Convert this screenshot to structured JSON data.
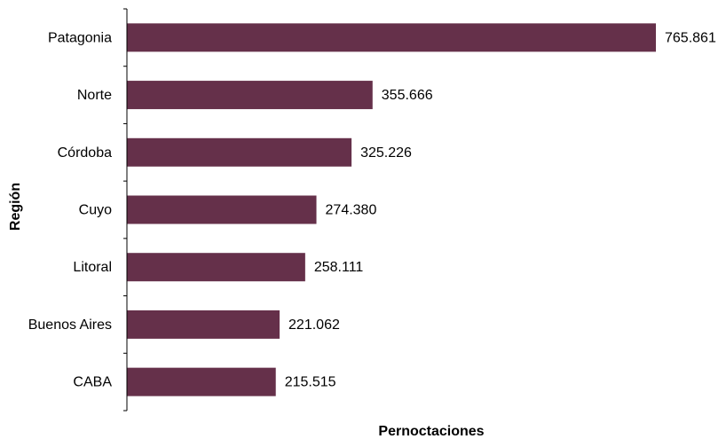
{
  "chart_data": {
    "type": "bar",
    "orientation": "horizontal",
    "categories": [
      "Patagonia",
      "Norte",
      "Córdoba",
      "Cuyo",
      "Litoral",
      "Buenos Aires",
      "CABA"
    ],
    "values": [
      765861,
      355666,
      325226,
      274380,
      258111,
      221062,
      215515
    ],
    "data_labels": [
      "765.861",
      "355.666",
      "325.226",
      "274.380",
      "258.111",
      "221.062",
      "215.515"
    ],
    "title": "",
    "xlabel": "Pernoctaciones",
    "ylabel": "Región",
    "xlim": [
      0,
      800000
    ],
    "grid": false,
    "legend": "none",
    "bar_color": "#65304a"
  }
}
